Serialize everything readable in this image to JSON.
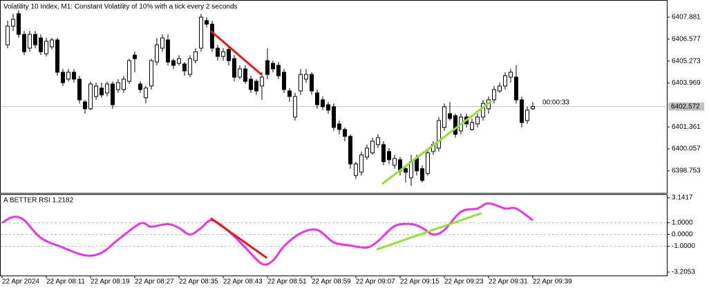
{
  "chart_data": [
    {
      "type": "candlestick",
      "title": "Volatility 10 Index, M1:  Constant Volatility of 10% with a tick every 2 seconds",
      "open": [
        6406.24,
        6407.35,
        6408.09,
        6406.86,
        6406.04,
        6406.86,
        6406.65,
        6405.71,
        6406.12,
        6406.53,
        6404.61,
        6404.2,
        6404.61,
        6404.2,
        6402.85,
        6402.44,
        6403.17,
        6403.67,
        6403.38,
        6403.91,
        6403.58,
        6403.58,
        6404.07,
        6405.63,
        6403.91,
        6403.09,
        6403.79,
        6405.22,
        6406.04,
        6406.53,
        6405.3,
        6405.14,
        6405.1,
        6404.48,
        6405.3,
        6406.04,
        6407.68,
        6407.47,
        6406.04,
        6405.55,
        6405.96,
        6405.42,
        6404.32,
        6404.81,
        6404.2,
        6404.07,
        6403.79,
        6405.3,
        6405.14,
        6405.02,
        6404.61,
        6403.5,
        6401.95,
        6403.5,
        6404.2,
        6404.48,
        6403.38,
        6402.97,
        6402.68,
        6402.56,
        6401.54,
        6401.21,
        6400.8,
        6398.47,
        6398.67,
        6399.57,
        6399.82,
        6400.31,
        6400.31,
        6399.9,
        6399.08,
        6399.41,
        6398.88,
        6398.34,
        6399.49,
        6398.88,
        6398.59,
        6399.9,
        6400.1,
        6401.33,
        6402.15,
        6402.03,
        6401.13,
        6401.95,
        6401.21,
        6401.54,
        6401.95,
        6402.44,
        6402.97,
        6403.5,
        6403.79,
        6404.32,
        6404.32,
        6402.97,
        6401.74,
        6402.44
      ],
      "high": [
        6407.68,
        6408.09,
        6408.29,
        6407.06,
        6407.06,
        6407.06,
        6406.86,
        6406.65,
        6406.65,
        6406.65,
        6404.81,
        6404.81,
        6404.81,
        6404.4,
        6402.97,
        6404.07,
        6403.99,
        6403.99,
        6404.07,
        6404.07,
        6404.2,
        6404.4,
        6405.42,
        6405.83,
        6404.07,
        6403.79,
        6405.42,
        6406.65,
        6406.86,
        6406.86,
        6405.42,
        6405.63,
        6405.22,
        6405.63,
        6406.04,
        6408.09,
        6407.88,
        6407.68,
        6406.24,
        6406.04,
        6406.12,
        6405.63,
        6405.02,
        6405.02,
        6404.4,
        6404.2,
        6404.61,
        6406.04,
        6405.3,
        6405.22,
        6404.81,
        6403.67,
        6403.38,
        6404.81,
        6404.81,
        6404.61,
        6403.58,
        6403.17,
        6402.85,
        6402.76,
        6401.74,
        6401.33,
        6400.92,
        6399.29,
        6399.9,
        6400.31,
        6400.72,
        6400.92,
        6400.51,
        6400.1,
        6399.7,
        6399.57,
        6399.08,
        6399.7,
        6399.7,
        6399.08,
        6400.1,
        6400.51,
        6401.95,
        6402.76,
        6402.85,
        6402.15,
        6402.15,
        6402.15,
        6401.86,
        6402.15,
        6402.97,
        6403.17,
        6403.79,
        6403.99,
        6404.61,
        6404.81,
        6405.02,
        6403.17,
        6402.56,
        6402.85
      ],
      "low": [
        6406.04,
        6407.06,
        6406.65,
        6405.63,
        6405.83,
        6406.04,
        6405.63,
        6405.55,
        6405.96,
        6404.4,
        6403.79,
        6404.07,
        6403.99,
        6402.76,
        6402.15,
        6402.36,
        6402.97,
        6403.09,
        6403.17,
        6402.44,
        6403.38,
        6403.38,
        6403.91,
        6404.61,
        6403.38,
        6402.76,
        6403.58,
        6405.02,
        6405.83,
        6405.02,
        6404.81,
        6405.02,
        6404.4,
        6404.32,
        6405.14,
        6405.83,
        6407.27,
        6405.83,
        6405.3,
        6405.3,
        6405.02,
        6404.07,
        6404.2,
        6403.91,
        6403.38,
        6403.26,
        6402.97,
        6404.2,
        6404.61,
        6404.2,
        6403.38,
        6402.85,
        6401.74,
        6403.26,
        6403.99,
        6403.26,
        6402.44,
        6402.36,
        6402.15,
        6401.13,
        6400.92,
        6400.51,
        6398.88,
        6398.26,
        6398.47,
        6399.41,
        6399.7,
        6400.1,
        6399.08,
        6399.16,
        6398.88,
        6398.47,
        6398.06,
        6397.85,
        6398.47,
        6398.06,
        6398.47,
        6399.7,
        6399.9,
        6401.13,
        6401.74,
        6400.72,
        6400.92,
        6401.33,
        6401.13,
        6401.33,
        6401.74,
        6402.15,
        6402.76,
        6403.38,
        6403.58,
        6403.99,
        6402.76,
        6401.33,
        6401.54,
        6402.36
      ],
      "close": [
        6407.35,
        6407.76,
        6406.86,
        6405.83,
        6406.86,
        6406.24,
        6405.83,
        6406.45,
        6406.53,
        6404.61,
        6403.99,
        6404.61,
        6404.2,
        6402.97,
        6402.44,
        6403.91,
        6403.79,
        6403.26,
        6403.91,
        6402.68,
        6403.99,
        6404.2,
        6405.3,
        6405.42,
        6403.58,
        6403.67,
        6405.3,
        6406.24,
        6406.65,
        6405.22,
        6405.02,
        6405.42,
        6404.69,
        6405.42,
        6405.83,
        6407.88,
        6407.47,
        6406.04,
        6405.55,
        6405.83,
        6405.3,
        6404.32,
        6404.81,
        6404.07,
        6403.58,
        6403.5,
        6404.32,
        6404.48,
        6404.81,
        6404.4,
        6403.58,
        6403.17,
        6403.17,
        6404.48,
        6404.48,
        6403.5,
        6402.68,
        6402.56,
        6402.36,
        6401.33,
        6401.21,
        6400.8,
        6399.16,
        6399.16,
        6399.7,
        6400.1,
        6400.51,
        6400.72,
        6399.29,
        6399.41,
        6399.49,
        6398.75,
        6398.67,
        6399.29,
        6398.75,
        6398.18,
        6399.82,
        6400.31,
        6401.74,
        6402.56,
        6401.86,
        6400.92,
        6401.95,
        6401.54,
        6401.62,
        6401.95,
        6402.76,
        6402.97,
        6403.58,
        6403.79,
        6404.4,
        6404.61,
        6402.97,
        6401.62,
        6402.36,
        6402.572
      ],
      "ylim": [
        6397.44,
        6408.904
      ],
      "yticks": [
        6407.881,
        6406.577,
        6405.273,
        6403.969,
        6401.361,
        6400.057,
        6398.753
      ],
      "xlim": [
        -1.375,
        119.25
      ],
      "countdown": "00:00:33",
      "trendlines": [
        {
          "color": "#e31a1a",
          "x": [
            36.75,
            45.9
          ],
          "y": [
            6407.06,
            6404.48
          ]
        },
        {
          "color": "#8ee22b",
          "x": [
            67.75,
            87.5
          ],
          "y": [
            6397.97,
            6402.89
          ]
        }
      ]
    },
    {
      "type": "line",
      "title": "A BETTER RSI 1.2182",
      "series": [
        {
          "color": "#ee30ee",
          "x": [
            -1,
            1,
            3,
            6,
            10,
            14,
            17,
            20,
            24,
            26,
            29,
            31,
            33,
            35,
            37,
            40,
            43,
            46,
            48,
            50,
            53,
            56,
            59,
            62,
            65,
            67,
            70,
            73,
            75,
            77,
            79,
            82,
            85,
            87,
            90,
            92,
            95
          ],
          "values": [
            1.0,
            1.5,
            1.22,
            -0.28,
            -1.11,
            -1.78,
            -1.56,
            -0.44,
            0.94,
            0.67,
            0.89,
            0.56,
            0,
            0.56,
            1.22,
            0.28,
            -1.11,
            -2.5,
            -2.22,
            -1.0,
            0.11,
            0.39,
            -0.67,
            -0.94,
            -1.11,
            -0.56,
            0.72,
            0.89,
            0.56,
            0,
            0.39,
            1.94,
            2.22,
            2.67,
            2.22,
            2.22,
            1.22
          ]
        }
      ],
      "ylim": [
        -3.5,
        3.38
      ],
      "yticks": [
        3.1417,
        {
          "value": 1,
          "label": "1.0000"
        },
        {
          "value": 0,
          "label": "0.0000"
        },
        {
          "value": -1,
          "label": "-1.0000"
        },
        -3.2053
      ],
      "levels": [
        1,
        0,
        -1
      ],
      "xlim": [
        -1.375,
        119.25
      ],
      "xticks": [
        {
          "value": -1,
          "label": "22 Apr 2024"
        },
        {
          "value": 7,
          "label": "22 Apr 08:11"
        },
        {
          "value": 15,
          "label": "22 Apr 08:19"
        },
        {
          "value": 23,
          "label": "22 Apr 08:27"
        },
        {
          "value": 31,
          "label": "22 Apr 08:35"
        },
        {
          "value": 39,
          "label": "22 Apr 08:43"
        },
        {
          "value": 47,
          "label": "22 Apr 08:51"
        },
        {
          "value": 55,
          "label": "22 Apr 08:59"
        },
        {
          "value": 63,
          "label": "22 Apr 09:07"
        },
        {
          "value": 71,
          "label": "22 Apr 09:15"
        },
        {
          "value": 79,
          "label": "22 Apr 09:23"
        },
        {
          "value": 87,
          "label": "22 Apr 09:31"
        },
        {
          "value": 95,
          "label": "22 Apr 09:39"
        }
      ],
      "trendlines": [
        {
          "color": "#e31a1a",
          "x": [
            36.75,
            46.9
          ],
          "y": [
            1.39,
            -2.0
          ]
        },
        {
          "color": "#8ee22b",
          "x": [
            66.75,
            85.75
          ],
          "y": [
            -1.28,
            1.83
          ]
        }
      ]
    }
  ]
}
